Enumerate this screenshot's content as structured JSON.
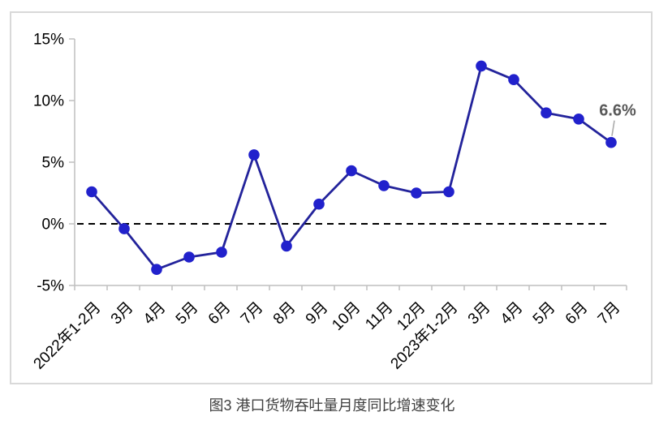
{
  "caption": "图3 港口货物吞吐量月度同比增速变化",
  "chart_data": {
    "type": "line",
    "title": "",
    "xlabel": "",
    "ylabel": "",
    "categories": [
      "2022年1-2月",
      "3月",
      "4月",
      "5月",
      "6月",
      "7月",
      "8月",
      "9月",
      "10月",
      "11月",
      "12月",
      "2023年1-2月",
      "3月",
      "4月",
      "5月",
      "6月",
      "7月"
    ],
    "values": [
      2.6,
      -0.4,
      -3.7,
      -2.7,
      -2.3,
      5.6,
      -1.8,
      1.6,
      4.3,
      3.1,
      2.5,
      2.6,
      12.8,
      11.7,
      9.0,
      8.5,
      6.6
    ],
    "ylim": [
      -5,
      15
    ],
    "ytick_step": 5,
    "ytick_labels": [
      "-5%",
      "0%",
      "5%",
      "10%",
      "15%"
    ],
    "grid": false,
    "legend_position": "none",
    "zero_line_style": "dashed",
    "annotation": {
      "text": "6.6%",
      "point_index": 16
    },
    "colors": {
      "series_line": "#23239b",
      "marker_fill": "#2121cc",
      "axis_line": "#bfbfbf",
      "tick_label": "#000000",
      "zero_line": "#000000",
      "annotation_text": "#595959",
      "leader_line": "#ababab",
      "frame_border": "#d9d9d9",
      "caption_text": "#404040",
      "background": "#ffffff"
    }
  }
}
